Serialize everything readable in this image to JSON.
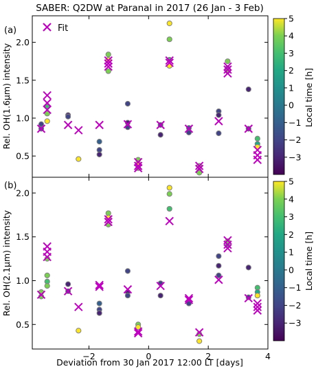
{
  "figure": {
    "title": "SABER: Q2DW at Paranal in 2017 (26 Jan - 3 Feb)",
    "xlabel": "Deviation from 30 Jan 2017 12:00 LT [days]",
    "colorbar_label": "Local time [h]",
    "colorbar_ticks": [
      "5",
      "4",
      "3",
      "2",
      "1",
      "0",
      "−1",
      "−2",
      "−3"
    ],
    "x_ticks": [
      "−2",
      "0",
      "2",
      "4"
    ],
    "legend_label": "Fit",
    "colors": {
      "fit": "#c000c0",
      "point_edge": "#808080"
    }
  },
  "chart_data": [
    {
      "type": "scatter",
      "panel_label": "(a)",
      "ylabel": "Rel. OH(1.6µm) intensity",
      "xlim": [
        -3.9,
        4.0
      ],
      "ylim": [
        0.22,
        2.35
      ],
      "y_ticks": [
        "0.5",
        "1.0",
        "1.5",
        "2.0"
      ],
      "colorscale": "viridis",
      "clim": [
        -4,
        5
      ],
      "legend_position": "top-left",
      "series": [
        {
          "name": "Fit",
          "marker": "x",
          "x": [
            -3.6,
            -3.4,
            -3.4,
            -3.4,
            -2.7,
            -2.35,
            -1.65,
            -1.35,
            -1.35,
            -1.35,
            -0.7,
            -0.35,
            -0.35,
            -0.35,
            0.4,
            0.7,
            0.7,
            1.35,
            1.7,
            1.7,
            2.35,
            2.65,
            2.65,
            2.65,
            3.35,
            3.65,
            3.65,
            3.65
          ],
          "y": [
            0.86,
            1.3,
            1.2,
            1.11,
            0.91,
            0.84,
            0.91,
            1.76,
            1.72,
            1.68,
            0.92,
            0.42,
            0.37,
            0.34,
            0.91,
            1.76,
            1.73,
            0.86,
            0.37,
            0.33,
            0.96,
            1.68,
            1.64,
            1.59,
            0.86,
            0.58,
            0.51,
            0.45
          ]
        },
        {
          "name": "",
          "marker": "circle",
          "x": [
            -3.6,
            -3.6,
            -3.4,
            -3.4,
            -3.4,
            -2.7,
            -2.7,
            -2.35,
            -1.65,
            -1.65,
            -1.65,
            -1.35,
            -1.35,
            -1.35,
            -0.7,
            -0.7,
            -0.7,
            -0.35,
            -0.35,
            -0.35,
            0.4,
            0.4,
            0.7,
            0.7,
            0.7,
            0.7,
            1.35,
            1.35,
            1.7,
            1.7,
            1.7,
            2.35,
            2.35,
            2.35,
            2.65,
            2.65,
            2.65,
            3.35,
            3.35,
            3.65,
            3.65,
            3.65
          ],
          "y": [
            0.92,
            0.86,
            1.06,
            1.15,
            0.96,
            1.04,
            1.02,
            0.46,
            0.69,
            0.58,
            0.52,
            1.84,
            1.77,
            1.62,
            1.19,
            0.94,
            0.88,
            0.45,
            0.4,
            0.34,
            0.91,
            0.78,
            2.25,
            2.04,
            1.77,
            1.69,
            0.87,
            0.81,
            0.37,
            0.3,
            0.28,
            1.09,
            1.04,
            0.8,
            1.75,
            1.66,
            1.62,
            1.38,
            0.86,
            0.73,
            0.66,
            0.62
          ],
          "local_time_h": [
            -2,
            -1,
            4,
            3,
            5,
            -3,
            -2,
            5,
            -1,
            -2,
            -3,
            4,
            5,
            4,
            -2,
            -3,
            -2,
            4,
            5,
            4,
            -2,
            -3,
            5,
            4,
            3,
            5,
            -1,
            -2,
            4,
            5,
            4,
            -2,
            -3,
            -2,
            4,
            3,
            4,
            -3,
            -2,
            3,
            2,
            5
          ]
        }
      ]
    },
    {
      "type": "scatter",
      "panel_label": "(b)",
      "ylabel": "Rel. OH(2.1µm) intensity",
      "xlim": [
        -3.9,
        4.0
      ],
      "ylim": [
        0.22,
        2.18
      ],
      "y_ticks": [
        "0.5",
        "1.0",
        "1.5",
        "2.0"
      ],
      "colorscale": "viridis",
      "clim": [
        -4,
        5
      ],
      "series": [
        {
          "name": "Fit",
          "marker": "x",
          "x": [
            -3.6,
            -3.4,
            -3.4,
            -3.4,
            -2.7,
            -2.35,
            -1.65,
            -1.65,
            -1.35,
            -1.35,
            -0.7,
            -0.35,
            -0.35,
            0.4,
            0.7,
            1.35,
            1.35,
            1.7,
            2.35,
            2.65,
            2.65,
            2.65,
            3.35,
            3.65,
            3.65,
            3.65
          ],
          "y": [
            0.84,
            1.39,
            1.33,
            1.27,
            0.88,
            0.7,
            0.95,
            0.93,
            1.7,
            1.67,
            0.9,
            0.42,
            0.4,
            0.94,
            1.68,
            0.8,
            0.78,
            0.41,
            1.01,
            1.46,
            1.41,
            1.37,
            0.8,
            0.74,
            0.7,
            0.66
          ]
        },
        {
          "name": "",
          "marker": "circle",
          "x": [
            -3.6,
            -3.6,
            -3.4,
            -3.4,
            -3.4,
            -3.4,
            -2.7,
            -2.7,
            -2.35,
            -1.65,
            -1.65,
            -1.65,
            -1.35,
            -1.35,
            -1.35,
            -0.7,
            -0.7,
            -0.7,
            -0.35,
            -0.35,
            0.4,
            0.4,
            0.7,
            0.7,
            0.7,
            1.35,
            1.35,
            1.7,
            1.7,
            2.35,
            2.35,
            2.35,
            2.65,
            2.65,
            3.35,
            3.35,
            3.65,
            3.65,
            3.65
          ],
          "y": [
            0.87,
            0.82,
            1.25,
            1.06,
            0.99,
            0.94,
            0.96,
            0.88,
            0.43,
            0.74,
            0.67,
            0.63,
            1.77,
            1.72,
            1.64,
            1.11,
            0.87,
            0.83,
            0.5,
            0.47,
            0.97,
            0.83,
            2.06,
            1.99,
            1.82,
            0.76,
            0.74,
            0.39,
            0.31,
            1.28,
            1.17,
            1.06,
            1.45,
            1.4,
            1.15,
            0.81,
            0.92,
            0.87,
            0.83
          ],
          "local_time_h": [
            4,
            4,
            4,
            4,
            3,
            4,
            -3,
            -2,
            5,
            -1,
            -2,
            -3,
            4,
            5,
            4,
            -2,
            -3,
            -2,
            4,
            5,
            -2,
            -3,
            5,
            4,
            3,
            -1,
            -2,
            4,
            5,
            -2,
            -3,
            -2,
            4,
            3,
            -3,
            -2,
            3,
            2,
            5
          ]
        }
      ]
    }
  ]
}
